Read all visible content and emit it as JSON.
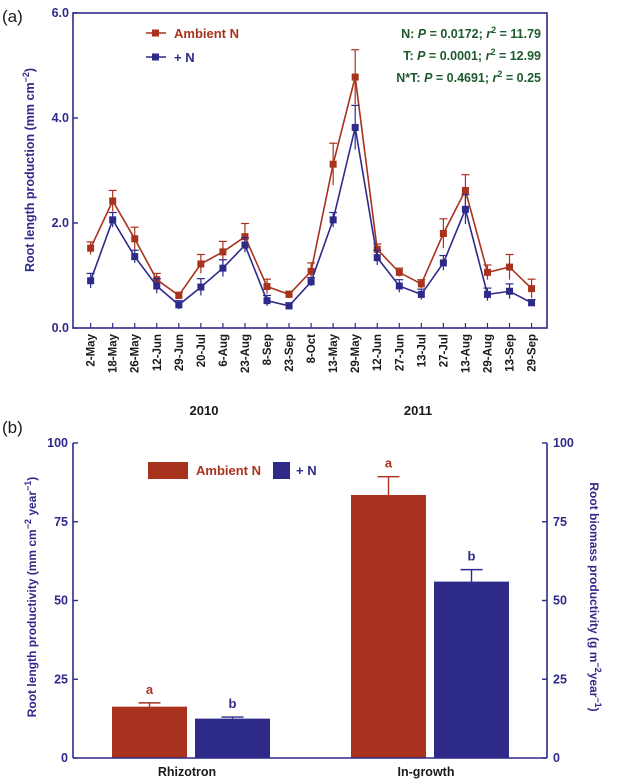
{
  "colors": {
    "ambient": "#A8321E",
    "plusN": "#2E2A8A",
    "axis": "#2E2A8A",
    "stats": "#1E5A2E",
    "text": "#1A1A1A"
  },
  "panel_a": {
    "tag": "(a)",
    "ylabel": "Root length production (mm cm",
    "ylabel_sup": "−2",
    "ylabel_end": ")",
    "year_labels": [
      "2010",
      "2011"
    ],
    "legend": [
      "Ambient N",
      "+ N"
    ],
    "stats": [
      {
        "lead": "N: ",
        "p": "P",
        "pv": " = 0.0172; ",
        "r": "r",
        "rv": " = 11.79"
      },
      {
        "lead": "T: ",
        "p": "P",
        "pv": " = 0.0001; ",
        "r": "r",
        "rv": " = 12.99"
      },
      {
        "lead": "N*T: ",
        "p": "P",
        "pv": " = 0.4691; ",
        "r": "r",
        "rv": " = 0.25"
      }
    ]
  },
  "panel_b": {
    "tag": "(b)",
    "ylabel_left": "Root length productivity (mm cm",
    "ylabel_left_sup": "−2",
    "ylabel_left_mid": " year",
    "ylabel_left_sup2": "−1",
    "ylabel_left_end": ")",
    "ylabel_right": "Root biomass productivity (g m",
    "ylabel_right_sup": "−2",
    "ylabel_right_mid": "year",
    "ylabel_right_sup2": "−1",
    "ylabel_right_end": ")",
    "legend": [
      "Ambient N",
      "+ N"
    ]
  },
  "chart_data": [
    {
      "type": "line",
      "panel": "(a)",
      "x": [
        "2-May",
        "18-May",
        "26-May",
        "12-Jun",
        "29-Jun",
        "20-Jul",
        "6-Aug",
        "23-Aug",
        "8-Sep",
        "23-Sep",
        "8-Oct",
        "13-May",
        "29-May",
        "12-Jun",
        "27-Jun",
        "13-Jul",
        "27-Jul",
        "13-Aug",
        "29-Aug",
        "13-Sep",
        "29-Sep"
      ],
      "year_groups": [
        {
          "year": "2010",
          "from": "2-May",
          "to": "8-Oct"
        },
        {
          "year": "2011",
          "from": "13-May",
          "to": "29-Sep"
        }
      ],
      "series": [
        {
          "name": "Ambient N",
          "color": "#A8321E",
          "values": [
            1.52,
            2.42,
            1.7,
            0.92,
            0.62,
            1.22,
            1.45,
            1.74,
            0.79,
            0.64,
            1.08,
            3.12,
            4.78,
            1.5,
            1.06,
            0.84,
            1.8,
            2.62,
            1.06,
            1.16,
            0.75
          ],
          "errors": [
            0.12,
            0.2,
            0.22,
            0.12,
            0.06,
            0.18,
            0.2,
            0.25,
            0.14,
            0.06,
            0.16,
            0.4,
            0.52,
            0.1,
            0.08,
            0.08,
            0.28,
            0.3,
            0.14,
            0.24,
            0.18
          ]
        },
        {
          "name": "+ N",
          "color": "#2E2A8A",
          "values": [
            0.9,
            2.06,
            1.36,
            0.8,
            0.44,
            0.78,
            1.14,
            1.58,
            0.52,
            0.42,
            0.88,
            2.06,
            3.82,
            1.34,
            0.8,
            0.64,
            1.24,
            2.26,
            0.64,
            0.7,
            0.48
          ],
          "errors": [
            0.14,
            0.14,
            0.12,
            0.14,
            0.08,
            0.16,
            0.16,
            0.14,
            0.1,
            0.06,
            0.08,
            0.14,
            0.42,
            0.14,
            0.12,
            0.1,
            0.14,
            0.28,
            0.12,
            0.14,
            0.06
          ]
        }
      ],
      "ylabel": "Root length production (mm cm−2)",
      "ylim": [
        0,
        6
      ],
      "yticks": [
        "0.0",
        "2.0",
        "4.0",
        "6.0"
      ],
      "legend_position": "top-left",
      "annotations": [
        "N: P = 0.0172; r2 = 11.79",
        "T: P = 0.0001; r2 = 12.99",
        "N*T: P = 0.4691; r2 = 0.25"
      ]
    },
    {
      "type": "bar",
      "panel": "(b)",
      "categories": [
        "Rhizotron",
        "In-growth"
      ],
      "series": [
        {
          "name": "Ambient N",
          "color": "#A8321E",
          "values": [
            16.3,
            83.5
          ],
          "errors": [
            1.2,
            5.8
          ],
          "labels": [
            "a",
            "a"
          ]
        },
        {
          "name": "+ N",
          "color": "#2E2A8A",
          "values": [
            12.5,
            56.0
          ],
          "errors": [
            0.5,
            3.8
          ],
          "labels": [
            "b",
            "b"
          ]
        }
      ],
      "ylabel_left": "Root length productivity (mm cm−2 year−1)",
      "ylabel_right": "Root biomass productivity (g m−2 year−1)",
      "ylim": [
        0,
        100
      ],
      "yticks": [
        "0",
        "25",
        "50",
        "75",
        "100"
      ],
      "legend_position": "top-left"
    }
  ]
}
